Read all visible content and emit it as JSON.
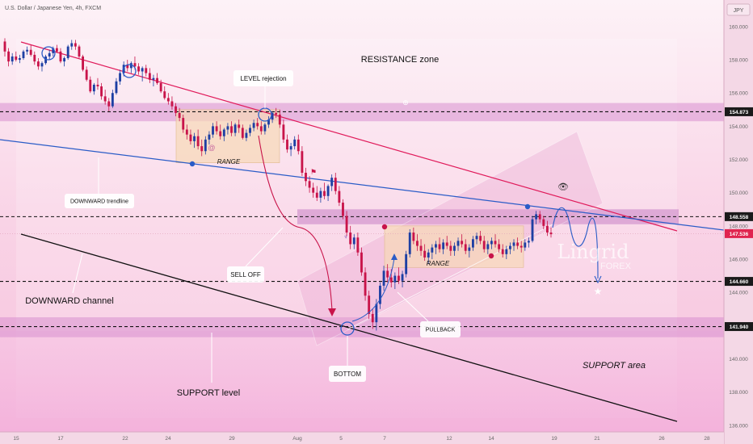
{
  "header": {
    "symbol": "U.S. Dollar / Japanese Yen, 4h, FXCM",
    "currency": "JPY"
  },
  "chart_data": {
    "type": "candlestick",
    "title": "U.S. Dollar / Japanese Yen, 4h, FXCM",
    "y_axis": {
      "unit": "JPY",
      "ylim": [
        135.6,
        161.6
      ],
      "ticks": [
        "136.000",
        "138.000",
        "140.000",
        "142.000",
        "144.000",
        "146.000",
        "148.000",
        "150.000",
        "152.000",
        "154.000",
        "156.000",
        "158.000",
        "160.000"
      ]
    },
    "x_axis": {
      "ticks": [
        "15",
        "17",
        "22",
        "24",
        "29",
        "Aug",
        "5",
        "7",
        "12",
        "14",
        "19",
        "21",
        "26",
        "28"
      ]
    },
    "price_badges": [
      {
        "value": "154.873",
        "price": 154.873,
        "style": "dark"
      },
      {
        "value": "148.558",
        "price": 148.558,
        "style": "dark"
      },
      {
        "value": "147.536",
        "price": 147.536,
        "style": "red"
      },
      {
        "value": "144.660",
        "price": 144.66,
        "style": "dark"
      },
      {
        "value": "141.940",
        "price": 141.94,
        "style": "dark"
      }
    ],
    "candles": [
      [
        159.1,
        159.3,
        158.2,
        158.5
      ],
      [
        158.5,
        158.7,
        157.6,
        157.9
      ],
      [
        157.9,
        158.4,
        157.7,
        158.2
      ],
      [
        158.2,
        158.5,
        157.9,
        158.0
      ],
      [
        158.0,
        158.3,
        157.8,
        158.1
      ],
      [
        158.1,
        158.6,
        158.0,
        158.5
      ],
      [
        158.5,
        158.8,
        158.3,
        158.6
      ],
      [
        158.6,
        158.9,
        158.2,
        158.3
      ],
      [
        158.3,
        158.5,
        157.7,
        157.9
      ],
      [
        157.9,
        158.1,
        157.4,
        157.6
      ],
      [
        157.6,
        157.9,
        157.3,
        157.8
      ],
      [
        157.8,
        158.3,
        157.7,
        158.2
      ],
      [
        158.2,
        158.6,
        158.0,
        158.4
      ],
      [
        158.4,
        158.8,
        158.2,
        158.7
      ],
      [
        158.7,
        158.9,
        158.4,
        158.5
      ],
      [
        158.5,
        158.7,
        157.8,
        157.9
      ],
      [
        157.9,
        158.2,
        157.6,
        158.1
      ],
      [
        158.1,
        158.9,
        158.0,
        158.8
      ],
      [
        158.8,
        159.2,
        158.6,
        159.0
      ],
      [
        159.0,
        159.2,
        158.6,
        158.8
      ],
      [
        158.8,
        158.9,
        158.1,
        158.2
      ],
      [
        158.2,
        158.3,
        157.3,
        157.4
      ],
      [
        157.4,
        157.6,
        156.7,
        156.8
      ],
      [
        156.8,
        157.0,
        156.0,
        156.1
      ],
      [
        156.1,
        156.6,
        155.9,
        156.5
      ],
      [
        156.5,
        156.9,
        156.2,
        156.4
      ],
      [
        156.4,
        156.6,
        155.6,
        155.8
      ],
      [
        155.8,
        156.2,
        155.3,
        155.5
      ],
      [
        155.5,
        155.7,
        154.9,
        155.2
      ],
      [
        155.2,
        156.2,
        155.1,
        156.0
      ],
      [
        156.0,
        156.9,
        155.9,
        156.7
      ],
      [
        156.7,
        157.4,
        156.5,
        157.2
      ],
      [
        157.2,
        157.9,
        157.0,
        157.7
      ],
      [
        157.7,
        158.0,
        157.3,
        157.5
      ],
      [
        157.5,
        157.9,
        157.2,
        157.8
      ],
      [
        157.8,
        158.2,
        157.4,
        157.6
      ],
      [
        157.6,
        157.8,
        157.1,
        157.3
      ],
      [
        157.3,
        157.6,
        156.7,
        157.5
      ],
      [
        157.5,
        157.7,
        157.0,
        157.2
      ],
      [
        157.2,
        157.5,
        156.6,
        156.8
      ],
      [
        156.8,
        157.1,
        156.4,
        156.9
      ],
      [
        156.9,
        157.2,
        156.5,
        156.6
      ],
      [
        156.6,
        156.8,
        156.0,
        156.1
      ],
      [
        156.1,
        156.4,
        155.6,
        155.7
      ],
      [
        155.7,
        156.0,
        155.3,
        155.5
      ],
      [
        155.5,
        155.8,
        155.0,
        155.2
      ],
      [
        155.2,
        155.4,
        154.6,
        154.8
      ],
      [
        154.8,
        155.1,
        154.3,
        154.5
      ],
      [
        154.5,
        154.7,
        153.6,
        153.8
      ],
      [
        153.8,
        154.1,
        153.2,
        153.5
      ],
      [
        153.5,
        153.8,
        152.9,
        153.1
      ],
      [
        153.1,
        153.6,
        152.7,
        153.4
      ],
      [
        153.4,
        153.8,
        152.6,
        152.8
      ],
      [
        152.8,
        153.2,
        152.2,
        152.5
      ],
      [
        152.5,
        153.4,
        152.3,
        153.2
      ],
      [
        153.2,
        153.7,
        152.9,
        153.5
      ],
      [
        153.5,
        154.2,
        153.3,
        154.0
      ],
      [
        154.0,
        154.3,
        153.5,
        153.7
      ],
      [
        153.7,
        154.1,
        153.2,
        153.4
      ],
      [
        153.4,
        153.9,
        153.1,
        153.8
      ],
      [
        153.8,
        154.2,
        153.5,
        154.0
      ],
      [
        154.0,
        154.3,
        153.4,
        153.6
      ],
      [
        153.6,
        154.2,
        153.4,
        154.1
      ],
      [
        154.1,
        154.4,
        153.6,
        153.9
      ],
      [
        153.9,
        154.1,
        153.2,
        153.3
      ],
      [
        153.3,
        153.8,
        153.1,
        153.6
      ],
      [
        153.6,
        154.1,
        153.4,
        153.9
      ],
      [
        153.9,
        154.4,
        153.7,
        154.2
      ],
      [
        154.2,
        154.5,
        153.8,
        154.0
      ],
      [
        154.0,
        154.3,
        153.5,
        153.7
      ],
      [
        153.7,
        154.2,
        153.5,
        154.1
      ],
      [
        154.1,
        154.6,
        153.9,
        154.4
      ],
      [
        154.4,
        154.9,
        154.2,
        154.8
      ],
      [
        154.8,
        155.1,
        154.5,
        154.7
      ],
      [
        154.7,
        155.0,
        153.9,
        154.1
      ],
      [
        154.1,
        154.4,
        153.0,
        153.2
      ],
      [
        153.2,
        153.5,
        152.4,
        152.6
      ],
      [
        152.6,
        153.0,
        152.2,
        152.8
      ],
      [
        152.8,
        153.4,
        152.6,
        153.2
      ],
      [
        153.2,
        153.5,
        152.3,
        152.5
      ],
      [
        152.5,
        152.8,
        151.0,
        151.2
      ],
      [
        151.2,
        151.5,
        150.4,
        150.7
      ],
      [
        150.7,
        151.0,
        150.0,
        150.3
      ],
      [
        150.3,
        150.6,
        149.7,
        150.0
      ],
      [
        150.0,
        150.4,
        149.5,
        149.7
      ],
      [
        149.7,
        150.3,
        149.4,
        150.1
      ],
      [
        150.1,
        150.6,
        149.6,
        149.8
      ],
      [
        149.8,
        150.5,
        149.5,
        150.4
      ],
      [
        150.4,
        151.1,
        150.1,
        150.9
      ],
      [
        150.9,
        151.2,
        149.9,
        150.1
      ],
      [
        150.1,
        150.4,
        149.2,
        149.4
      ],
      [
        149.4,
        149.6,
        148.4,
        148.6
      ],
      [
        148.6,
        148.9,
        147.4,
        147.6
      ],
      [
        147.6,
        148.0,
        146.6,
        146.9
      ],
      [
        146.9,
        147.5,
        146.6,
        147.3
      ],
      [
        147.3,
        147.6,
        146.2,
        146.4
      ],
      [
        146.4,
        146.7,
        145.0,
        145.2
      ],
      [
        145.2,
        145.5,
        143.5,
        143.8
      ],
      [
        143.8,
        144.1,
        142.4,
        142.7
      ],
      [
        142.7,
        143.0,
        141.8,
        142.2
      ],
      [
        142.2,
        143.6,
        141.7,
        143.3
      ],
      [
        143.3,
        144.6,
        143.0,
        144.4
      ],
      [
        144.4,
        145.6,
        144.1,
        145.3
      ],
      [
        145.3,
        145.7,
        144.6,
        144.9
      ],
      [
        144.9,
        145.4,
        144.3,
        144.6
      ],
      [
        144.6,
        145.2,
        144.2,
        145.0
      ],
      [
        145.0,
        145.5,
        144.5,
        144.7
      ],
      [
        144.7,
        145.3,
        144.3,
        145.1
      ],
      [
        145.1,
        146.5,
        144.9,
        146.3
      ],
      [
        146.3,
        147.8,
        146.1,
        147.6
      ],
      [
        147.6,
        147.9,
        146.9,
        147.1
      ],
      [
        147.1,
        147.5,
        146.5,
        146.8
      ],
      [
        146.8,
        147.2,
        146.2,
        146.5
      ],
      [
        146.5,
        146.9,
        145.9,
        146.1
      ],
      [
        146.1,
        146.6,
        145.7,
        146.4
      ],
      [
        146.4,
        146.9,
        146.0,
        146.7
      ],
      [
        146.7,
        147.1,
        146.3,
        146.9
      ],
      [
        146.9,
        147.3,
        146.4,
        146.6
      ],
      [
        146.6,
        147.2,
        146.3,
        147.0
      ],
      [
        147.0,
        147.4,
        146.6,
        146.8
      ],
      [
        146.8,
        147.1,
        146.2,
        146.5
      ],
      [
        146.5,
        147.0,
        146.2,
        146.8
      ],
      [
        146.8,
        147.3,
        146.5,
        147.1
      ],
      [
        147.1,
        147.5,
        146.7,
        146.9
      ],
      [
        146.9,
        147.2,
        146.3,
        146.5
      ],
      [
        146.5,
        146.9,
        146.1,
        146.7
      ],
      [
        146.7,
        147.4,
        146.5,
        147.2
      ],
      [
        147.2,
        147.6,
        146.9,
        147.4
      ],
      [
        147.4,
        147.7,
        146.9,
        147.1
      ],
      [
        147.1,
        147.4,
        146.4,
        146.6
      ],
      [
        146.6,
        147.1,
        146.3,
        146.9
      ],
      [
        146.9,
        147.3,
        146.6,
        147.1
      ],
      [
        147.1,
        147.5,
        146.7,
        146.9
      ],
      [
        146.9,
        147.2,
        146.4,
        146.6
      ],
      [
        146.6,
        146.9,
        146.1,
        146.3
      ],
      [
        146.3,
        146.8,
        146.0,
        146.6
      ],
      [
        146.6,
        147.0,
        146.3,
        146.8
      ],
      [
        146.8,
        147.2,
        146.5,
        147.0
      ],
      [
        147.0,
        147.3,
        146.6,
        146.8
      ],
      [
        146.8,
        147.1,
        146.4,
        146.7
      ],
      [
        146.7,
        147.2,
        146.5,
        147.0
      ],
      [
        147.0,
        147.3,
        146.7,
        147.1
      ],
      [
        147.1,
        148.6,
        147.0,
        148.4
      ],
      [
        148.4,
        148.9,
        148.1,
        148.7
      ],
      [
        148.7,
        148.9,
        148.2,
        148.4
      ],
      [
        148.4,
        148.6,
        147.8,
        148.0
      ],
      [
        148.0,
        148.3,
        147.4,
        147.6
      ],
      [
        147.6,
        147.9,
        147.3,
        147.5
      ]
    ],
    "levels": [
      {
        "name": "resistance-level",
        "price": 154.873
      },
      {
        "name": "breakout-level",
        "price": 148.558
      },
      {
        "name": "target-level",
        "price": 144.66
      },
      {
        "name": "support-level",
        "price": 141.94
      }
    ],
    "annotations": {
      "resistance_zone": "RESISTANCE zone",
      "level_rejection": "LEVEL rejection",
      "range_1": "RANGE",
      "range_2": "RANGE",
      "downward_trendline": "DOWNWARD trendline",
      "sell_off": "SELL OFF",
      "downward_channel": "DOWNWARD channel",
      "support_level": "SUPPORT level",
      "bottom": "BOTTOM",
      "pullback": "PULLBACK",
      "support_area": "SUPPORT area",
      "watermark_main": "Lingrid",
      "watermark_sub": "FOREX"
    }
  }
}
